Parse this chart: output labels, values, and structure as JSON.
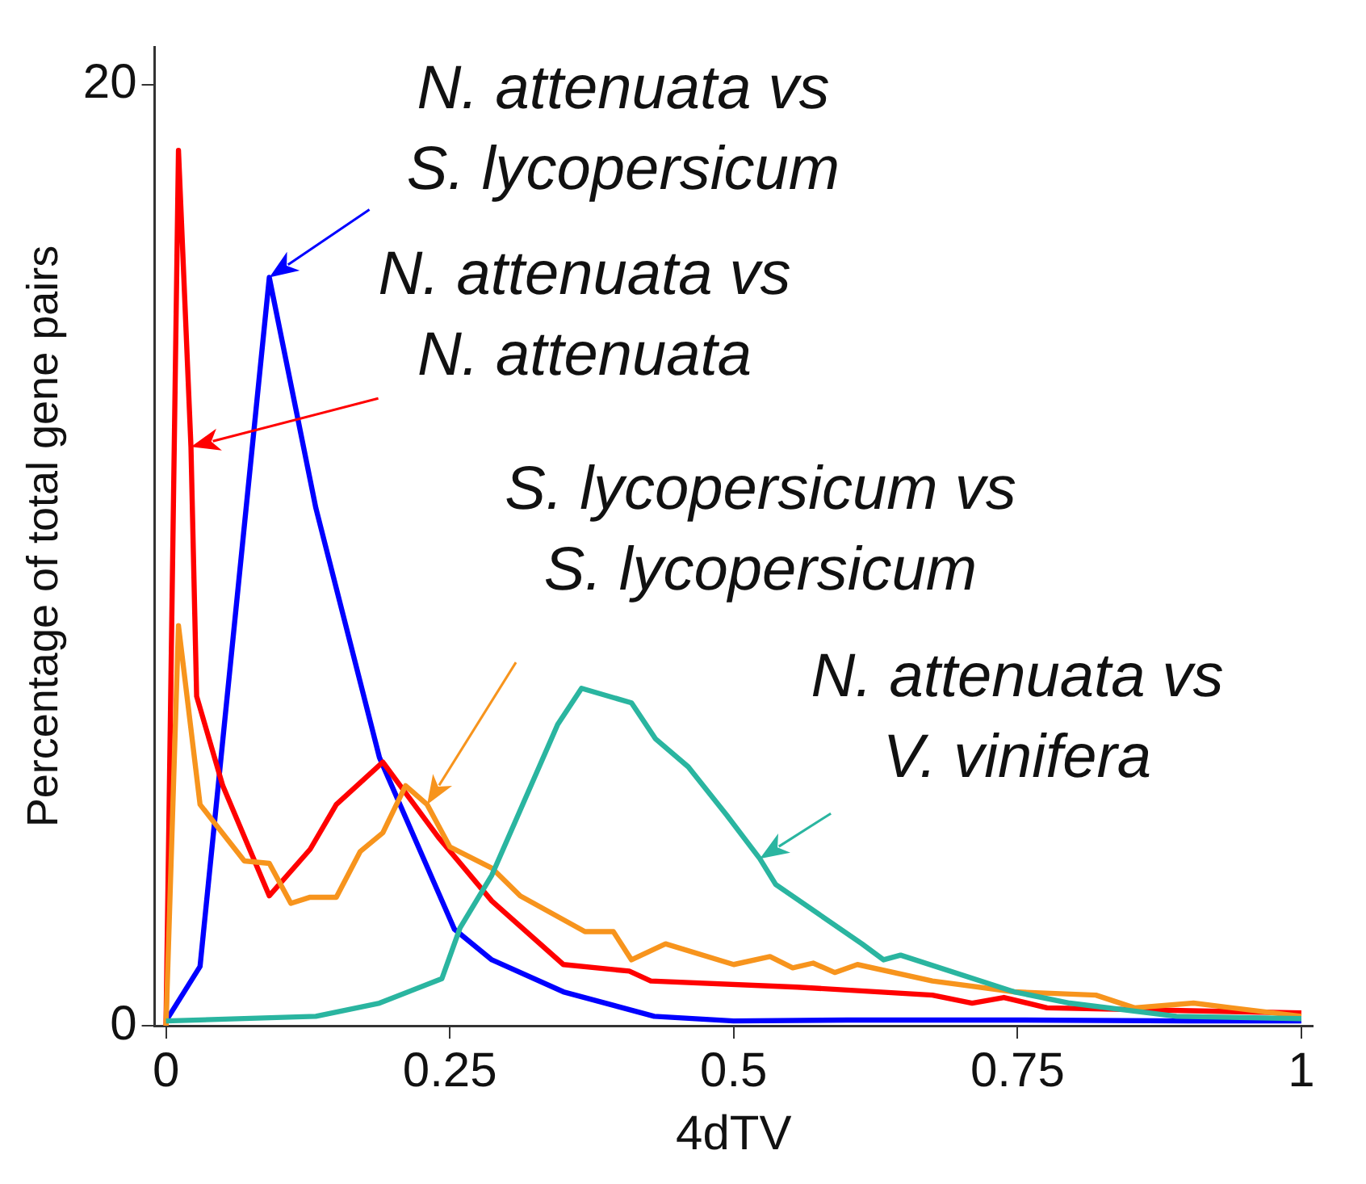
{
  "chart_data": {
    "type": "line",
    "xlabel": "4dTV",
    "ylabel": "Percentage of total gene pairs",
    "xlim": [
      -0.01,
      1.01
    ],
    "ylim": [
      0,
      20.8
    ],
    "xticks": [
      0,
      0.25,
      0.5,
      0.75,
      1
    ],
    "yticks": [
      0,
      20
    ],
    "grid": false,
    "legend": false,
    "marker": "none",
    "line_style": "solid",
    "series": [
      {
        "color": "#0000ff",
        "x": [
          0,
          0.03,
          0.091,
          0.132,
          0.188,
          0.254,
          0.287,
          0.35,
          0.43,
          0.5,
          0.6,
          0.75,
          0.9,
          1.0
        ],
        "values": [
          0.1,
          1.26,
          15.9,
          11.0,
          5.7,
          2.05,
          1.4,
          0.72,
          0.2,
          0.1,
          0.12,
          0.12,
          0.1,
          0.1
        ]
      },
      {
        "color": "#ff0000",
        "x": [
          0,
          0.011,
          0.022,
          0.027,
          0.05,
          0.091,
          0.127,
          0.15,
          0.191,
          0.24,
          0.287,
          0.35,
          0.408,
          0.427,
          0.556,
          0.675,
          0.71,
          0.738,
          0.776,
          1.0
        ],
        "values": [
          0,
          18.6,
          12.3,
          7.0,
          5.1,
          2.76,
          3.75,
          4.7,
          5.6,
          4.0,
          2.65,
          1.3,
          1.16,
          0.95,
          0.82,
          0.65,
          0.48,
          0.6,
          0.38,
          0.27
        ]
      },
      {
        "color": "#f7941d",
        "x": [
          0,
          0.011,
          0.03,
          0.069,
          0.091,
          0.11,
          0.127,
          0.15,
          0.171,
          0.191,
          0.211,
          0.23,
          0.25,
          0.287,
          0.312,
          0.369,
          0.394,
          0.41,
          0.44,
          0.5,
          0.532,
          0.552,
          0.57,
          0.589,
          0.609,
          0.675,
          0.747,
          0.819,
          0.853,
          0.905,
          1.0
        ],
        "values": [
          0,
          8.5,
          4.7,
          3.5,
          3.45,
          2.6,
          2.73,
          2.73,
          3.7,
          4.1,
          5.1,
          4.7,
          3.8,
          3.35,
          2.76,
          2.0,
          2.0,
          1.4,
          1.74,
          1.3,
          1.47,
          1.23,
          1.33,
          1.13,
          1.3,
          0.95,
          0.72,
          0.65,
          0.38,
          0.48,
          0.2
        ]
      },
      {
        "color": "#2ab5a0",
        "x": [
          0,
          0.132,
          0.188,
          0.243,
          0.259,
          0.287,
          0.316,
          0.345,
          0.366,
          0.41,
          0.431,
          0.46,
          0.494,
          0.523,
          0.537,
          0.613,
          0.632,
          0.647,
          0.747,
          0.796,
          0.89,
          1.0
        ],
        "values": [
          0.1,
          0.2,
          0.48,
          1.0,
          2.08,
          3.2,
          4.8,
          6.4,
          7.17,
          6.86,
          6.1,
          5.5,
          4.47,
          3.55,
          3.0,
          1.74,
          1.4,
          1.5,
          0.72,
          0.48,
          0.2,
          0.15
        ]
      }
    ],
    "annotations": [
      "N. attenuata vs\nS. lycopersicum",
      "N. attenuata vs\nN. attenuata",
      "S. lycopersicum vs\nS. lycopersicum",
      "N. attenuata vs\nV. vinifera"
    ]
  }
}
